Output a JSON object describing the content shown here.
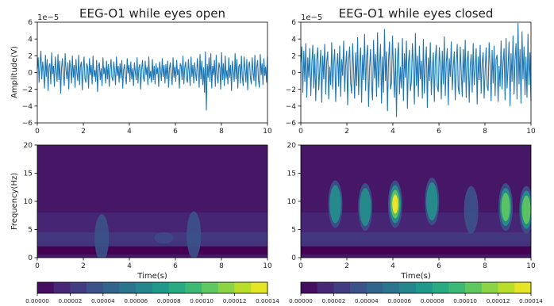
{
  "chart_data": [
    {
      "type": "line",
      "title": "EEG-O1 while eyes open",
      "xlabel": "",
      "ylabel": "Amplitude(V)",
      "offset_text": "1e−5",
      "xlim": [
        0,
        10
      ],
      "ylim": [
        -6,
        6
      ],
      "xticks": [
        0,
        2,
        4,
        6,
        8,
        10
      ],
      "yticks": [
        -6,
        -4,
        -2,
        0,
        2,
        4,
        6
      ],
      "series": [
        {
          "color": "#1f77b4",
          "x_range": [
            0,
            10
          ],
          "values": [
            0.4,
            1.8,
            -1.2,
            0.9,
            2.6,
            -0.8,
            1.3,
            0.1,
            -1.9,
            2.1,
            -0.5,
            1.6,
            -2.2,
            0.7,
            1.1,
            -1.4,
            2.4,
            -0.2,
            0.8,
            -1.7,
            1.9,
            0.3,
            -1.1,
            2.2,
            -0.9,
            1.4,
            -2.5,
            0.6,
            1.7,
            -0.4,
            -1.6,
            2.3,
            0.2,
            -0.8,
            1.2,
            -2.0,
            1.5,
            0.5,
            -1.3,
            2.0,
            -0.6,
            0.9,
            -1.8,
            1.6,
            0.0,
            -1.0,
            2.1,
            -1.5,
            0.8,
            1.3,
            -2.1,
            0.4,
            1.9,
            -0.7,
            -1.2,
            1.1,
            0.6,
            -1.9,
            1.7,
            -0.3,
            0.9,
            -1.4,
            2.0,
            -0.5,
            0.3,
            -1.1,
            1.5,
            -2.3,
            0.7,
            1.2,
            -0.9,
            0.5,
            -1.6,
            1.8,
            -0.2,
            0.6,
            -1.3,
            1.4,
            -0.8,
            1.0,
            -1.7,
            0.4,
            1.6,
            -0.6,
            -1.0,
            1.3,
            0.2,
            -1.5,
            1.9,
            -0.4,
            0.8,
            -1.2,
            1.1,
            -0.7,
            1.5,
            -1.9,
            0.3,
            1.0,
            -0.5,
            -1.4,
            1.7,
            -0.1,
            0.9,
            -1.1,
            1.3,
            -0.8,
            0.5,
            -1.6,
            1.2,
            0.1,
            -0.9,
            1.8,
            -1.3,
            0.6,
            1.0,
            -2.0,
            0.4,
            1.5,
            -0.6,
            -1.1,
            1.4,
            -0.3,
            0.7,
            -1.5,
            1.9,
            -0.7,
            0.2,
            -1.2,
            1.6,
            -0.9,
            0.8,
            -1.4,
            1.1,
            -0.2,
            0.6,
            -1.7,
            1.3,
            0.3,
            -1.0,
            1.7,
            -0.5,
            0.9,
            -1.3,
            1.0,
            -0.8,
            1.4,
            -1.8,
            0.5,
            1.2,
            -0.4,
            -1.5,
            1.8,
            -0.6,
            0.7,
            -1.1,
            1.5,
            -0.3,
            0.4,
            -1.9,
            1.1,
            0.8,
            -0.9,
            2.0,
            -1.4,
            0.6,
            1.3,
            -0.7,
            -1.2,
            1.6,
            0.1,
            -1.6,
            1.9,
            -0.5,
            0.9,
            -1.3,
            1.2,
            -0.1,
            -1.0,
            1.7,
            0.4,
            -1.8,
            2.2,
            -0.8,
            1.4,
            -1.5,
            0.6,
            -2.4,
            2.5,
            -4.5,
            1.0,
            -0.6,
            1.8,
            -1.1,
            2.3,
            -1.9,
            0.8,
            -0.3,
            1.5,
            -1.7,
            2.1,
            -0.4,
            -1.3,
            1.2,
            0.6,
            -2.0,
            2.4,
            -0.9,
            1.1,
            -1.6,
            2.0,
            -0.7,
            0.3,
            -1.4,
            1.8,
            -0.6,
            0.9,
            -2.2,
            1.4,
            0.2,
            -1.1,
            2.3,
            -0.8,
            1.6,
            -1.9,
            0.7,
            1.0,
            -1.3,
            2.0,
            -0.5,
            -1.6,
            1.9,
            0.4,
            -1.2,
            1.6,
            -2.1,
            0.8,
            1.3,
            -0.6,
            -1.4,
            1.8,
            0.0,
            -1.0,
            2.1,
            -1.7,
            0.6,
            1.5,
            -0.9,
            -1.8,
            2.2,
            -0.3,
            1.1,
            -1.5,
            1.7,
            -0.4,
            0.7,
            -1.2,
            1.9
          ]
        }
      ]
    },
    {
      "type": "line",
      "title": "EEG-O1 while eyes closed",
      "xlabel": "",
      "ylabel": "",
      "offset_text": "1e−5",
      "xlim": [
        0,
        10
      ],
      "ylim": [
        -6,
        6
      ],
      "xticks": [
        0,
        2,
        4,
        6,
        8,
        10
      ],
      "yticks": [
        -6,
        -4,
        -2,
        0,
        2,
        4,
        6
      ],
      "series": [
        {
          "color": "#1f77b4",
          "x_range": [
            0,
            10
          ],
          "values": [
            1.2,
            3.1,
            -2.4,
            2.6,
            -1.1,
            3.5,
            -3.0,
            1.8,
            -0.6,
            2.9,
            -2.8,
            0.9,
            3.3,
            -1.9,
            2.2,
            -3.4,
            1.5,
            3.0,
            -2.1,
            0.4,
            2.7,
            -3.6,
            2.0,
            -0.8,
            3.4,
            -2.6,
            1.3,
            2.5,
            -3.2,
            0.7,
            -1.5,
            3.6,
            -2.0,
            1.1,
            2.8,
            -3.5,
            0.5,
            2.3,
            -1.7,
            3.2,
            -2.9,
            1.6,
            -0.4,
            3.8,
            -2.3,
            0.9,
            2.6,
            -3.9,
            1.4,
            3.1,
            -1.2,
            -2.5,
            3.5,
            0.3,
            -3.1,
            2.4,
            -1.6,
            4.2,
            -2.7,
            1.0,
            3.0,
            -3.6,
            2.1,
            -0.9,
            4.6,
            -2.2,
            1.7,
            3.3,
            -4.1,
            0.6,
            2.8,
            -1.4,
            -3.3,
            3.9,
            -0.7,
            2.2,
            -2.9,
            4.8,
            -1.8,
            0.8,
            3.4,
            -3.7,
            1.9,
            -2.4,
            5.2,
            -1.0,
            2.5,
            -4.6,
            1.3,
            3.7,
            -2.0,
            -1.3,
            4.4,
            0.2,
            -3.0,
            2.9,
            -5.3,
            1.6,
            3.6,
            -2.6,
            0.7,
            -1.9,
            4.1,
            -3.4,
            2.3,
            -0.6,
            3.8,
            -4.3,
            1.1,
            2.7,
            -2.2,
            -1.1,
            3.5,
            0.5,
            -3.8,
            4.7,
            -1.6,
            2.0,
            -2.9,
            3.2,
            -0.8,
            1.4,
            -3.1,
            4.0,
            -2.5,
            0.9,
            3.1,
            -4.2,
            1.8,
            -1.0,
            3.6,
            -2.7,
            0.4,
            2.4,
            -3.5,
            1.5,
            3.3,
            -1.7,
            -2.3,
            3.0,
            0.8,
            -3.2,
            2.6,
            -1.4,
            4.3,
            -2.8,
            1.2,
            2.9,
            -3.9,
            1.7,
            -0.5,
            3.7,
            -2.1,
            0.6,
            2.5,
            -3.3,
            1.0,
            3.4,
            -1.8,
            -2.6,
            3.1,
            0.1,
            -2.9,
            2.8,
            -1.2,
            3.9,
            -3.0,
            1.4,
            2.6,
            -3.6,
            0.7,
            2.2,
            -2.4,
            3.5,
            -1.5,
            0.5,
            2.9,
            -3.8,
            1.9,
            -0.9,
            3.3,
            -2.5,
            1.1,
            2.4,
            -3.1,
            0.3,
            3.0,
            -1.6,
            -2.2,
            3.6,
            0.9,
            -3.4,
            2.7,
            -1.3,
            3.2,
            -2.8,
            1.6,
            2.1,
            -3.5,
            0.8,
            -1.7,
            3.8,
            -2.0,
            1.2,
            2.9,
            -3.3,
            4.1,
            -1.9,
            0.6,
            3.7,
            -4.0,
            2.3,
            -1.1,
            4.4,
            -2.6,
            1.5,
            3.5,
            -3.2,
            5.9,
            -1.4,
            2.8,
            -3.7,
            4.9,
            -0.8,
            3.1,
            -2.7,
            1.9,
            -3.0,
            4.6,
            -1.5,
            2.4,
            -3.4
          ]
        }
      ]
    },
    {
      "type": "heatmap",
      "title": "",
      "xlabel": "Time(s)",
      "ylabel": "Frequency(Hz)",
      "xlim": [
        0,
        10
      ],
      "ylim": [
        0,
        20
      ],
      "xticks": [
        0,
        2,
        4,
        6,
        8,
        10
      ],
      "yticks": [
        0,
        5,
        10,
        15,
        20
      ],
      "hotspots": [
        {
          "t": 2.8,
          "f": 3.5,
          "power": 4e-05
        },
        {
          "t": 6.8,
          "f": 4.0,
          "power": 5e-05
        },
        {
          "t": 5.5,
          "f": 3.5,
          "power": 3e-05
        }
      ],
      "colorbar": {
        "min": 0,
        "max": 0.00014,
        "ticks": [
          "0.00000",
          "0.00002",
          "0.00004",
          "0.00006",
          "0.00008",
          "0.00010",
          "0.00012",
          "0.00014"
        ]
      }
    },
    {
      "type": "heatmap",
      "title": "",
      "xlabel": "Time(s)",
      "ylabel": "",
      "xlim": [
        0,
        10
      ],
      "ylim": [
        0,
        20
      ],
      "xticks": [
        0,
        2,
        4,
        6,
        8,
        10
      ],
      "yticks": [
        0,
        5,
        10,
        15,
        20
      ],
      "hotspots": [
        {
          "t": 1.5,
          "f": 9.5,
          "power": 8e-05
        },
        {
          "t": 2.8,
          "f": 9.0,
          "power": 0.0001
        },
        {
          "t": 4.1,
          "f": 9.5,
          "power": 0.00014
        },
        {
          "t": 5.7,
          "f": 10.0,
          "power": 8e-05
        },
        {
          "t": 7.4,
          "f": 8.5,
          "power": 4e-05
        },
        {
          "t": 8.9,
          "f": 9.0,
          "power": 0.00011
        },
        {
          "t": 9.8,
          "f": 8.5,
          "power": 0.00013
        }
      ],
      "colorbar": {
        "min": 0,
        "max": 0.00014,
        "ticks": [
          "0.00000",
          "0.00002",
          "0.00004",
          "0.00006",
          "0.00008",
          "0.00010",
          "0.00012",
          "0.00014"
        ]
      }
    }
  ]
}
